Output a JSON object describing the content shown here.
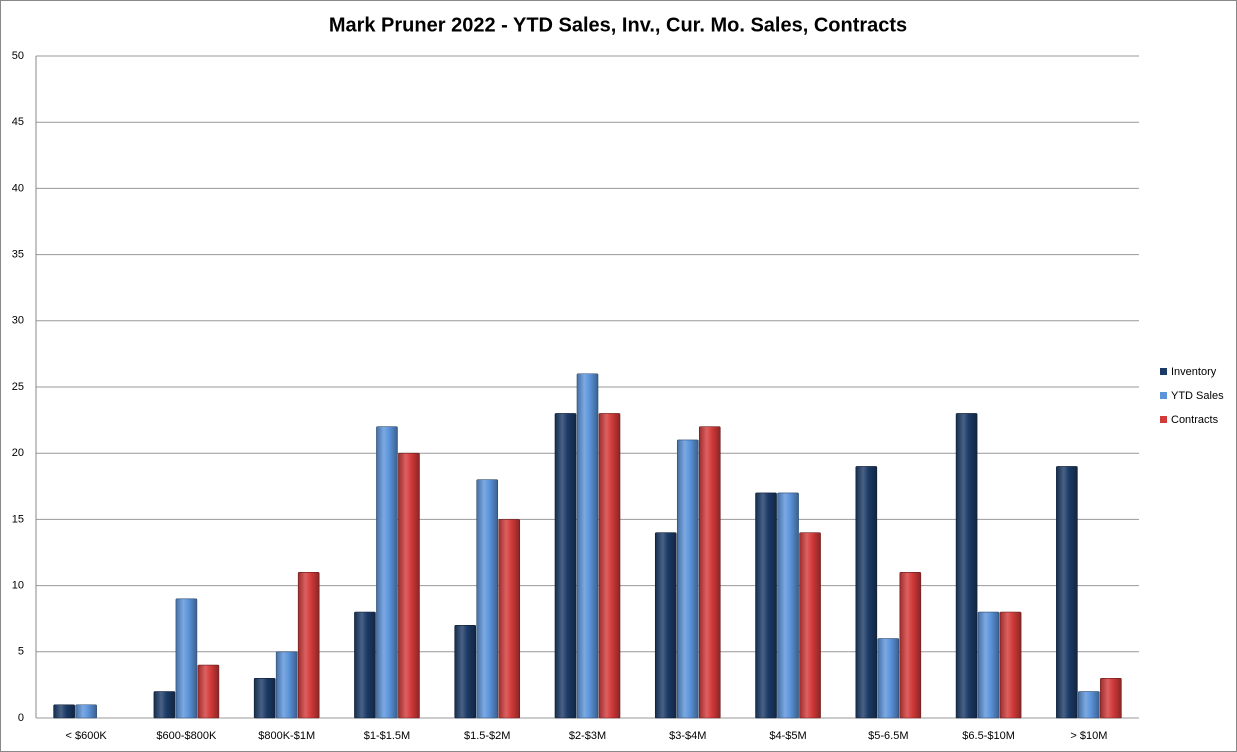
{
  "chart_data": {
    "type": "bar",
    "title": "Mark Pruner 2022 - YTD Sales, Inv., Cur. Mo. Sales, Contracts",
    "categories": [
      "< $600K",
      "$600-$800K",
      "$800K-$1M",
      "$1-$1.5M",
      "$1.5-$2M",
      "$2-$3M",
      "$3-$4M",
      "$4-$5M",
      "$5-6.5M",
      "$6.5-$10M",
      "> $10M"
    ],
    "series": [
      {
        "name": "Inventory",
        "color": "#1b3a66",
        "values": [
          1,
          2,
          3,
          8,
          7,
          23,
          14,
          17,
          19,
          23,
          19
        ]
      },
      {
        "name": "YTD Sales",
        "color": "#5b94db",
        "values": [
          1,
          9,
          5,
          22,
          18,
          26,
          21,
          17,
          6,
          8,
          2
        ]
      },
      {
        "name": "Contracts",
        "color": "#d33a3a",
        "values": [
          0,
          4,
          11,
          20,
          15,
          23,
          22,
          14,
          11,
          8,
          3
        ]
      }
    ],
    "ylim": [
      0,
      50
    ],
    "yticks": [
      0,
      5,
      10,
      15,
      20,
      25,
      30,
      35,
      40,
      45,
      50
    ],
    "grid": true,
    "legend": "right"
  }
}
